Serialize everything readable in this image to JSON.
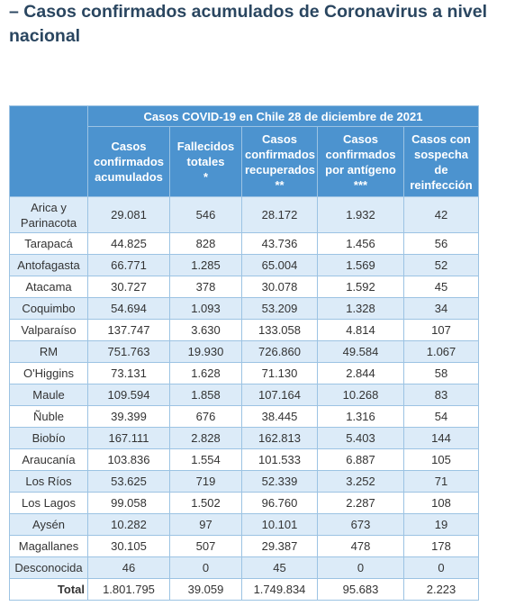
{
  "heading": "– Casos confirmados acumulados de Coronavirus a nivel nacional",
  "table": {
    "title": "Casos COVID-19 en Chile 28 de diciembre de 2021",
    "headers": [
      {
        "text": "Casos confirmados acumulados"
      },
      {
        "text": "Fallecidos totales",
        "note": "*"
      },
      {
        "text": "Casos confirmados recuperados",
        "note": "**"
      },
      {
        "text": "Casos confirmados por antígeno",
        "note": "***"
      },
      {
        "text": "Casos con sospecha de reinfección"
      }
    ],
    "rows": [
      [
        "Arica y Parinacota",
        "29.081",
        "546",
        "28.172",
        "1.932",
        "42"
      ],
      [
        "Tarapacá",
        "44.825",
        "828",
        "43.736",
        "1.456",
        "56"
      ],
      [
        "Antofagasta",
        "66.771",
        "1.285",
        "65.004",
        "1.569",
        "52"
      ],
      [
        "Atacama",
        "30.727",
        "378",
        "30.078",
        "1.592",
        "45"
      ],
      [
        "Coquimbo",
        "54.694",
        "1.093",
        "53.209",
        "1.328",
        "34"
      ],
      [
        "Valparaíso",
        "137.747",
        "3.630",
        "133.058",
        "4.814",
        "107"
      ],
      [
        "RM",
        "751.763",
        "19.930",
        "726.860",
        "49.584",
        "1.067"
      ],
      [
        "O'Higgins",
        "73.131",
        "1.628",
        "71.130",
        "2.844",
        "58"
      ],
      [
        "Maule",
        "109.594",
        "1.858",
        "107.164",
        "10.268",
        "83"
      ],
      [
        "Ñuble",
        "39.399",
        "676",
        "38.445",
        "1.316",
        "54"
      ],
      [
        "Biobío",
        "167.111",
        "2.828",
        "162.813",
        "5.403",
        "144"
      ],
      [
        "Araucanía",
        "103.836",
        "1.554",
        "101.533",
        "6.887",
        "105"
      ],
      [
        "Los Ríos",
        "53.625",
        "719",
        "52.339",
        "3.252",
        "71"
      ],
      [
        "Los Lagos",
        "99.058",
        "1.502",
        "96.760",
        "2.287",
        "108"
      ],
      [
        "Aysén",
        "10.282",
        "97",
        "10.101",
        "673",
        "19"
      ],
      [
        "Magallanes",
        "30.105",
        "507",
        "29.387",
        "478",
        "178"
      ],
      [
        "Desconocida",
        "46",
        "0",
        "45",
        "0",
        "0"
      ]
    ],
    "total": [
      "Total",
      "1.801.795",
      "39.059",
      "1.749.834",
      "95.683",
      "2.223"
    ]
  }
}
